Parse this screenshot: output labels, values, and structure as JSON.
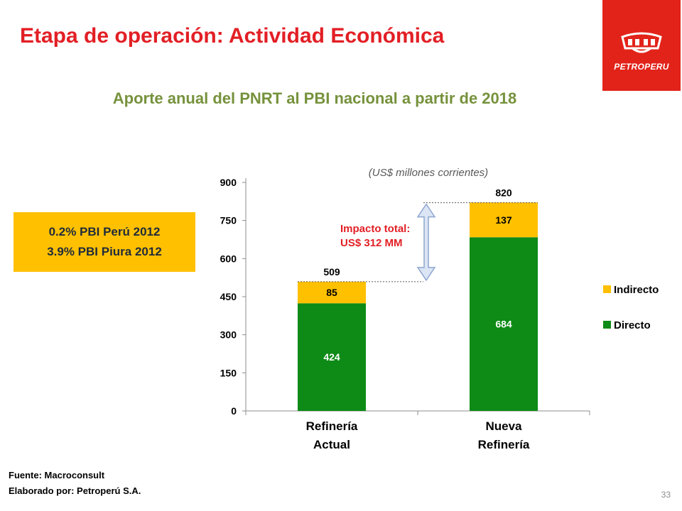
{
  "slide": {
    "title": "Etapa de operación: Actividad Económica",
    "subtitle": "Aporte anual del PNRT al PBI nacional a partir de 2018",
    "page_number": "33"
  },
  "logo": {
    "text": "PETROPERU",
    "icon": "petroperu-logo-icon",
    "color": "#e2231a"
  },
  "callout": {
    "line1": "0.2%  PBI Perú 2012",
    "line2": "3.9% PBI Piura 2012",
    "color": "#ffc000"
  },
  "footer": {
    "source": "Fuente: Macroconsult",
    "prepared_by": "Elaborado por: Petroperú S.A."
  },
  "chart_data": {
    "type": "bar",
    "stacked": true,
    "unit_label": "(US$ millones corrientes)",
    "categories": [
      "Refinería Actual",
      "Nueva Refinería"
    ],
    "category_lines": [
      [
        "Refinería",
        "Actual"
      ],
      [
        "Nueva",
        "Refinería"
      ]
    ],
    "series": [
      {
        "name": "Directo",
        "values": [
          424,
          684
        ],
        "color": "#0e8a16"
      },
      {
        "name": "Indirecto",
        "values": [
          85,
          137
        ],
        "color": "#ffc000"
      }
    ],
    "totals": [
      509,
      820
    ],
    "ylim": [
      0,
      900
    ],
    "yticks": [
      0,
      150,
      300,
      450,
      600,
      750,
      900
    ],
    "legend_order": [
      "Indirecto",
      "Directo"
    ],
    "legend_position": "right",
    "grid": false,
    "annotation": {
      "lines": [
        "Impacto total:",
        "US$ 312 MM"
      ],
      "color": "#e21f25",
      "arrow_color": "#8ea6cf"
    }
  }
}
